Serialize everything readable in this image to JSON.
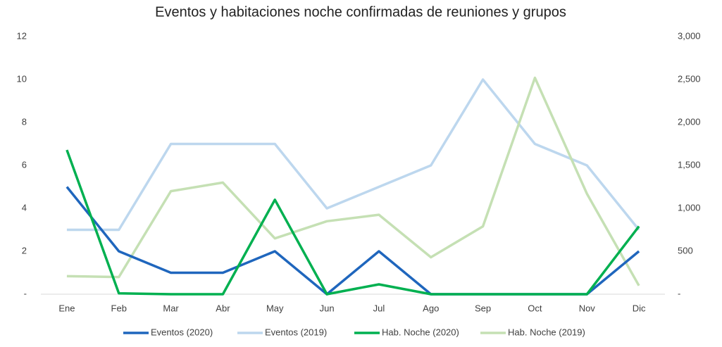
{
  "chart_data": {
    "type": "line",
    "title": "Eventos y habitaciones noche confirmadas de reuniones y grupos",
    "categories": [
      "Ene",
      "Feb",
      "Mar",
      "Abr",
      "May",
      "Jun",
      "Jul",
      "Ago",
      "Sep",
      "Oct",
      "Nov",
      "Dic"
    ],
    "series": [
      {
        "name": "Eventos (2020)",
        "color": "#1f66bd",
        "values": [
          5,
          2,
          1,
          1,
          2,
          0,
          2,
          0,
          0,
          0,
          0,
          2
        ]
      },
      {
        "name": "Eventos (2019)",
        "color": "#bdd7ee",
        "values": [
          3,
          3,
          7,
          7,
          7,
          4,
          5,
          6,
          10,
          7,
          6,
          3
        ]
      },
      {
        "name": "Hab. Noche (2020)",
        "color": "#00b050",
        "axis": "y2",
        "values": [
          1680,
          10,
          0,
          0,
          1100,
          0,
          115,
          0,
          0,
          0,
          0,
          790
        ]
      },
      {
        "name": "Hab. Noche (2019)",
        "color": "#c5e0b4",
        "axis": "y2",
        "values": [
          210,
          200,
          1200,
          1300,
          650,
          850,
          925,
          430,
          790,
          2520,
          1170,
          100
        ]
      }
    ],
    "ylim": [
      0,
      12
    ],
    "yticks": [
      {
        "value": 0,
        "label": "-"
      },
      2,
      4,
      6,
      8,
      10,
      12
    ],
    "y2lim": [
      0,
      3000
    ],
    "y2ticks": [
      {
        "value": 0,
        "label": "-"
      },
      500,
      {
        "value": 1000,
        "label": "1,000"
      },
      {
        "value": 1500,
        "label": "1,500"
      },
      {
        "value": 2000,
        "label": "2,000"
      },
      {
        "value": 2500,
        "label": "2,500"
      },
      {
        "value": 3000,
        "label": "3,000"
      }
    ],
    "grid": false,
    "legend": "bottom"
  }
}
